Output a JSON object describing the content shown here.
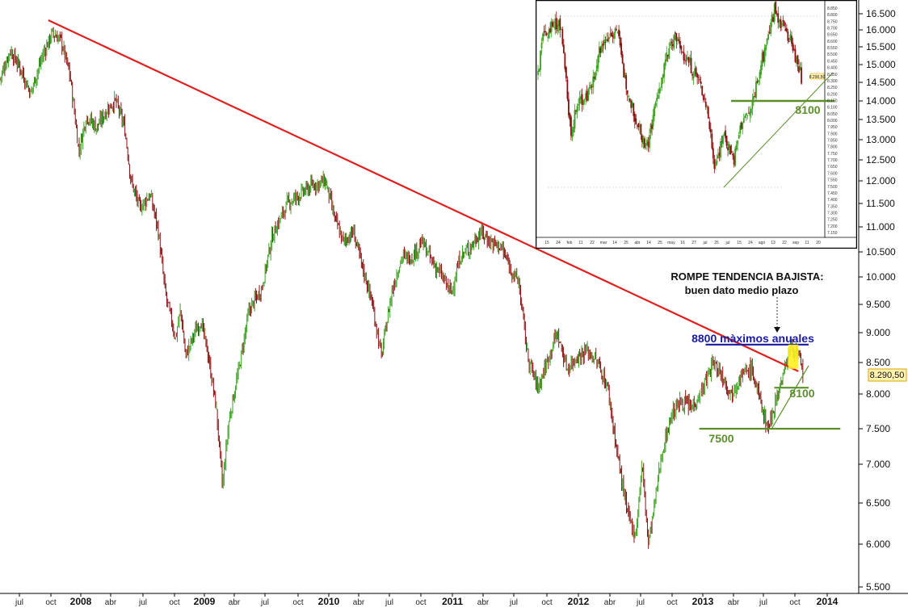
{
  "chart_data": [
    {
      "type": "candlestick",
      "title": "",
      "xlabel": "",
      "ylabel": "",
      "ylim": [
        5500,
        16800
      ],
      "y_ticks": [
        "5.500",
        "6.000",
        "6.500",
        "7.000",
        "7.500",
        "8.000",
        "8.500",
        "9.000",
        "9.500",
        "10.000",
        "10.500",
        "11.000",
        "11.500",
        "12.000",
        "12.500",
        "13.000",
        "13.500",
        "14.000",
        "14.500",
        "15.000",
        "15.500",
        "16.000",
        "16.500"
      ],
      "x_ticks": [
        {
          "label": "jul",
          "type": "month"
        },
        {
          "label": "oct",
          "type": "month"
        },
        {
          "label": "2008",
          "type": "year"
        },
        {
          "label": "abr",
          "type": "month"
        },
        {
          "label": "jul",
          "type": "month"
        },
        {
          "label": "oct",
          "type": "month"
        },
        {
          "label": "2009",
          "type": "year"
        },
        {
          "label": "abr",
          "type": "month"
        },
        {
          "label": "jul",
          "type": "month"
        },
        {
          "label": "oct",
          "type": "month"
        },
        {
          "label": "2010",
          "type": "year"
        },
        {
          "label": "abr",
          "type": "month"
        },
        {
          "label": "jul",
          "type": "month"
        },
        {
          "label": "oct",
          "type": "month"
        },
        {
          "label": "2011",
          "type": "year"
        },
        {
          "label": "abr",
          "type": "month"
        },
        {
          "label": "jul",
          "type": "month"
        },
        {
          "label": "oct",
          "type": "month"
        },
        {
          "label": "2012",
          "type": "year"
        },
        {
          "label": "abr",
          "type": "month"
        },
        {
          "label": "jul",
          "type": "month"
        },
        {
          "label": "oct",
          "type": "month"
        },
        {
          "label": "2013",
          "type": "year"
        },
        {
          "label": "abr",
          "type": "month"
        },
        {
          "label": "jul",
          "type": "month"
        },
        {
          "label": "oct",
          "type": "month"
        },
        {
          "label": "2014",
          "type": "year"
        }
      ],
      "price_path": [
        [
          2007.42,
          14600
        ],
        [
          2007.5,
          15400
        ],
        [
          2007.58,
          14900
        ],
        [
          2007.66,
          14200
        ],
        [
          2007.75,
          15200
        ],
        [
          2007.83,
          15900
        ],
        [
          2007.9,
          15700
        ],
        [
          2007.97,
          14700
        ],
        [
          2008.04,
          12700
        ],
        [
          2008.1,
          13600
        ],
        [
          2008.18,
          13300
        ],
        [
          2008.27,
          13800
        ],
        [
          2008.33,
          14000
        ],
        [
          2008.4,
          13300
        ],
        [
          2008.45,
          12000
        ],
        [
          2008.52,
          11400
        ],
        [
          2008.6,
          11700
        ],
        [
          2008.66,
          11000
        ],
        [
          2008.72,
          9700
        ],
        [
          2008.8,
          8900
        ],
        [
          2008.84,
          9400
        ],
        [
          2008.88,
          8600
        ],
        [
          2008.95,
          9000
        ],
        [
          2009.0,
          9200
        ],
        [
          2009.05,
          8700
        ],
        [
          2009.12,
          7800
        ],
        [
          2009.17,
          6700
        ],
        [
          2009.22,
          7600
        ],
        [
          2009.3,
          8400
        ],
        [
          2009.38,
          9400
        ],
        [
          2009.48,
          9800
        ],
        [
          2009.56,
          10800
        ],
        [
          2009.68,
          11500
        ],
        [
          2009.78,
          11700
        ],
        [
          2009.88,
          11900
        ],
        [
          2009.98,
          12000
        ],
        [
          2010.05,
          11200
        ],
        [
          2010.12,
          10700
        ],
        [
          2010.2,
          10900
        ],
        [
          2010.27,
          10200
        ],
        [
          2010.34,
          9600
        ],
        [
          2010.42,
          8600
        ],
        [
          2010.5,
          9700
        ],
        [
          2010.58,
          10400
        ],
        [
          2010.66,
          10400
        ],
        [
          2010.74,
          10700
        ],
        [
          2010.82,
          10300
        ],
        [
          2010.9,
          10000
        ],
        [
          2010.97,
          9700
        ],
        [
          2011.04,
          10400
        ],
        [
          2011.12,
          10600
        ],
        [
          2011.2,
          10900
        ],
        [
          2011.28,
          10700
        ],
        [
          2011.36,
          10600
        ],
        [
          2011.43,
          10200
        ],
        [
          2011.5,
          9900
        ],
        [
          2011.57,
          8600
        ],
        [
          2011.65,
          8100
        ],
        [
          2011.72,
          8500
        ],
        [
          2011.8,
          9000
        ],
        [
          2011.88,
          8400
        ],
        [
          2011.96,
          8600
        ],
        [
          2012.04,
          8700
        ],
        [
          2012.12,
          8500
        ],
        [
          2012.2,
          8100
        ],
        [
          2012.27,
          7200
        ],
        [
          2012.35,
          6400
        ],
        [
          2012.42,
          6100
        ],
        [
          2012.47,
          7000
        ],
        [
          2012.52,
          6000
        ],
        [
          2012.57,
          6500
        ],
        [
          2012.62,
          7100
        ],
        [
          2012.7,
          7700
        ],
        [
          2012.78,
          7900
        ],
        [
          2012.86,
          7800
        ],
        [
          2012.95,
          8100
        ],
        [
          2013.03,
          8500
        ],
        [
          2013.1,
          8300
        ],
        [
          2013.17,
          8000
        ],
        [
          2013.25,
          8300
        ],
        [
          2013.33,
          8400
        ],
        [
          2013.4,
          7900
        ],
        [
          2013.46,
          7500
        ],
        [
          2013.52,
          7900
        ],
        [
          2013.58,
          8300
        ],
        [
          2013.64,
          8800
        ],
        [
          2013.7,
          8600
        ],
        [
          2013.74,
          8290
        ]
      ],
      "last_price_label": "8.290,50",
      "lines": [
        {
          "name": "downtrend",
          "color": "#e02020",
          "from": [
            2007.8,
            16300
          ],
          "to": [
            2013.7,
            8360
          ]
        },
        {
          "name": "resistance-8800",
          "color": "#1a1aa6",
          "value": 8800,
          "from_x": 2012.97,
          "to_x": 2013.78
        },
        {
          "name": "support-8100",
          "color": "#5a8f29",
          "value": 8100,
          "from_x": 2013.51,
          "to_x": 2013.78
        },
        {
          "name": "support-7500",
          "color": "#5a8f29",
          "value": 7500,
          "from_x": 2012.92,
          "to_x": 2014.03
        },
        {
          "name": "uptrend",
          "color": "#5a8f29",
          "from": [
            2013.49,
            7500
          ],
          "to": [
            2013.78,
            8450
          ]
        }
      ],
      "highlight": {
        "color": "#ffee22",
        "x0": 2013.62,
        "x1": 2013.7,
        "y0": 8400,
        "y1": 8800
      },
      "annotations": {
        "headline_1": "ROMPE TENDENCIA BAJISTA:",
        "headline_2": "buen dato medio plazo",
        "resistance": "8800 màximos anuales",
        "support_8100": "8100",
        "support_7500": "7500"
      }
    },
    {
      "type": "candlestick",
      "title": "",
      "label_8100": "8100",
      "last_price_label": "8.290,50",
      "x_ticks": [
        "15",
        "24",
        "feb",
        "11",
        "22",
        "mar",
        "14",
        "25",
        "abr",
        "14",
        "25",
        "may",
        "16",
        "27",
        "jul",
        "25",
        "jul",
        "15",
        "24",
        "ago",
        "13",
        "22",
        "sep",
        "11",
        "20"
      ],
      "y_ticks": [
        "8.850",
        "8.800",
        "8.750",
        "8.700",
        "8.650",
        "8.600",
        "8.550",
        "8.500",
        "8.450",
        "8.400",
        "8.350",
        "8.300",
        "8.250",
        "8.200",
        "8.150",
        "8.100",
        "8.050",
        "8.000",
        "7.950",
        "7.900",
        "7.850",
        "7.800",
        "7.750",
        "7.700",
        "7.650",
        "7.600",
        "7.550",
        "7.500",
        "7.450",
        "7.400",
        "7.350",
        "7.300",
        "7.250",
        "7.200",
        "7.150"
      ],
      "price_path": [
        [
          0,
          8350
        ],
        [
          0.02,
          8650
        ],
        [
          0.05,
          8700
        ],
        [
          0.08,
          8750
        ],
        [
          0.1,
          8350
        ],
        [
          0.12,
          7900
        ],
        [
          0.15,
          8150
        ],
        [
          0.19,
          8200
        ],
        [
          0.22,
          8500
        ],
        [
          0.26,
          8650
        ],
        [
          0.29,
          8700
        ],
        [
          0.31,
          8400
        ],
        [
          0.34,
          8150
        ],
        [
          0.37,
          7950
        ],
        [
          0.4,
          7800
        ],
        [
          0.43,
          8100
        ],
        [
          0.47,
          8450
        ],
        [
          0.5,
          8650
        ],
        [
          0.52,
          8550
        ],
        [
          0.55,
          8450
        ],
        [
          0.59,
          8300
        ],
        [
          0.62,
          8100
        ],
        [
          0.65,
          7650
        ],
        [
          0.68,
          7900
        ],
        [
          0.72,
          7700
        ],
        [
          0.75,
          8000
        ],
        [
          0.78,
          8050
        ],
        [
          0.81,
          8350
        ],
        [
          0.84,
          8600
        ],
        [
          0.87,
          8850
        ],
        [
          0.9,
          8700
        ],
        [
          0.92,
          8650
        ],
        [
          0.95,
          8450
        ],
        [
          0.97,
          8300
        ]
      ],
      "lines": [
        {
          "name": "support-8100",
          "color": "#5a8f29",
          "value": 8100
        },
        {
          "name": "uptrend",
          "color": "#5a8f29"
        }
      ]
    }
  ]
}
